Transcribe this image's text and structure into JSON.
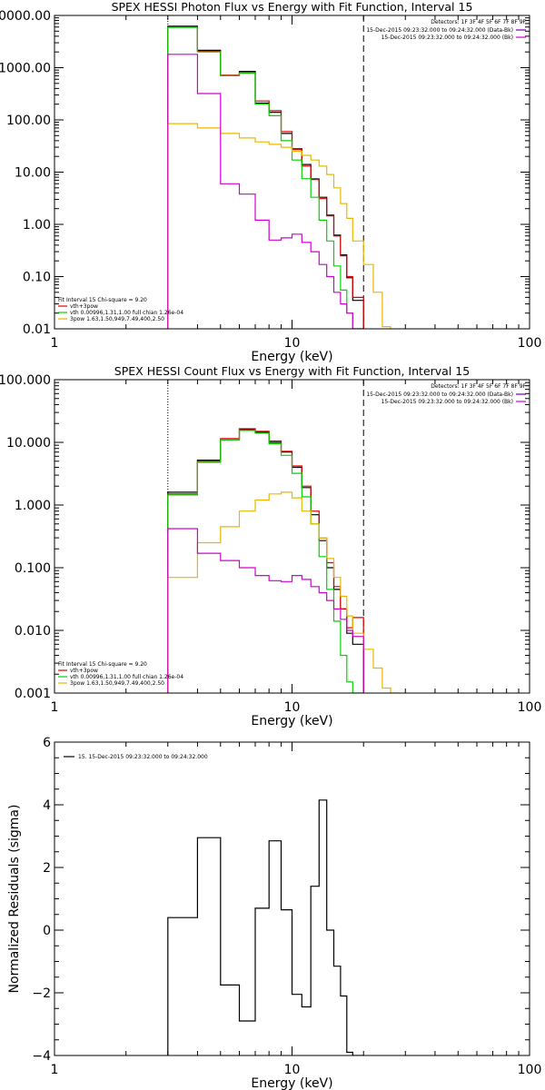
{
  "colors": {
    "black": "#000000",
    "red": "#e00000",
    "green": "#00d400",
    "magenta": "#d000d0",
    "yellow": "#e8b800",
    "purple": "#6a00b0"
  },
  "chart_data": [
    {
      "type": "line",
      "style": "histogram (step) on log-log axes",
      "title": "SPEX HESSI Photon Flux vs Energy with Fit Function, Interval 15",
      "xlabel": "Energy (keV)",
      "ylabel": "",
      "xscale": "log",
      "yscale": "log",
      "xlim": [
        1,
        100
      ],
      "ylim": [
        0.01,
        10000
      ],
      "xtick_labels": [
        "1",
        "10",
        "100"
      ],
      "ytick_values": [
        0.01,
        0.1,
        1,
        10,
        100,
        1000,
        10000
      ],
      "ytick_labels": [
        "0.01",
        "0.10",
        "1.00",
        "10.00",
        "100.00",
        "1000.00",
        "10000.00"
      ],
      "detectors_text": "Detectors: 1F 3F 4F 5F 6F 7F 8F 9F",
      "time_legend": [
        {
          "text": "15-Dec-2015 09:23:32.000 to 09:24:32.000 (Data-Bk)",
          "color": "#6a00b0"
        },
        {
          "text": "15-Dec-2015 09:23:32.000 to 09:24:32.000 (Bk)",
          "color": "#d000d0"
        }
      ],
      "fit_legend": {
        "header": "Fit Interval 15   Chi-square = 9.20",
        "items": [
          {
            "text": "vth+3pow",
            "color": "#e00000"
          },
          {
            "text": "vth 0.00996,1.31,1.00  full chian 1.26e-04",
            "color": "#00d400"
          },
          {
            "text": "3pow 1.63,1.50,949,7.49,400,2.50",
            "color": "#e8b800"
          }
        ]
      },
      "vlines": [
        {
          "x": 3,
          "style": "dotted"
        },
        {
          "x": 20,
          "style": "dashed"
        }
      ],
      "edges": [
        3,
        4,
        5,
        6,
        7,
        8,
        9,
        10,
        11,
        12,
        13,
        14,
        15,
        16,
        17,
        18,
        20,
        22,
        24,
        26
      ],
      "series": [
        {
          "name": "Data-Bk",
          "color": "#000000",
          "values": [
            6200,
            2150,
            710,
            850,
            210,
            140,
            55,
            28,
            14,
            7.4,
            3.3,
            1.5,
            0.62,
            0.26,
            0.095,
            0.035,
            null,
            null,
            null
          ]
        },
        {
          "name": "vth+3pow",
          "color": "#e00000",
          "values": [
            6000,
            2050,
            720,
            800,
            230,
            150,
            60,
            27,
            13,
            7.2,
            3.1,
            1.45,
            0.6,
            0.25,
            0.1,
            0.04,
            null,
            null,
            null
          ]
        },
        {
          "name": "vth",
          "color": "#00d400",
          "values": [
            5900,
            2000,
            700,
            780,
            200,
            120,
            40,
            17,
            7.5,
            3.3,
            1.2,
            0.48,
            0.16,
            0.055,
            0.02,
            0.01,
            null,
            null,
            null
          ]
        },
        {
          "name": "3pow",
          "color": "#e8b800",
          "values": [
            85,
            70,
            55,
            45,
            38,
            34,
            30,
            25,
            21,
            17,
            13,
            9,
            5,
            2.5,
            1.3,
            0.48,
            0.17,
            0.05,
            0.011
          ]
        },
        {
          "name": "Bk",
          "color": "#d000d0",
          "values": [
            1800,
            320,
            6,
            3.8,
            1.2,
            0.5,
            0.55,
            0.65,
            0.45,
            0.3,
            0.17,
            0.1,
            0.05,
            0.03,
            0.02,
            0.01,
            null,
            null,
            null
          ]
        }
      ]
    },
    {
      "type": "line",
      "style": "histogram (step) on log-log axes",
      "title": "SPEX HESSI Count Flux vs Energy with Fit Function, Interval 15",
      "xlabel": "Energy (keV)",
      "ylabel": "",
      "xscale": "log",
      "yscale": "log",
      "xlim": [
        1,
        100
      ],
      "ylim": [
        0.001,
        100
      ],
      "xtick_labels": [
        "1",
        "10",
        "100"
      ],
      "ytick_values": [
        0.001,
        0.01,
        0.1,
        1,
        10,
        100
      ],
      "ytick_labels": [
        "0.001",
        "0.010",
        "0.100",
        "1.000",
        "10.000",
        "100.000"
      ],
      "detectors_text": "Detectors: 1F 3F 4F 5F 6F 7F 8F 9F",
      "time_legend": [
        {
          "text": "15-Dec-2015 09:23:32.000 to 09:24:32.000 (Data-Bk)",
          "color": "#6a00b0"
        },
        {
          "text": "15-Dec-2015 09:23:32.000 to 09:24:32.000 (Bk)",
          "color": "#d000d0"
        }
      ],
      "fit_legend": {
        "header": "Fit Interval 15   Chi-square = 9.20",
        "items": [
          {
            "text": "vth+3pow",
            "color": "#e00000"
          },
          {
            "text": "vth 0.00996,1.31,1.00  full chian 1.26e-04",
            "color": "#00d400"
          },
          {
            "text": "3pow 1.63,1.50,949,7.49,400,2.50",
            "color": "#e8b800"
          }
        ]
      },
      "vlines": [
        {
          "x": 3,
          "style": "dotted"
        },
        {
          "x": 20,
          "style": "dashed"
        }
      ],
      "edges": [
        3,
        4,
        5,
        6,
        7,
        8,
        9,
        10,
        11,
        12,
        13,
        14,
        15,
        16,
        17,
        18,
        20,
        22,
        24,
        26,
        28
      ],
      "series": [
        {
          "name": "Data-Bk",
          "color": "#000000",
          "values": [
            1.6,
            5.2,
            11,
            16,
            14.5,
            10,
            7,
            4,
            1.9,
            0.7,
            0.27,
            0.1,
            0.045,
            0.022,
            0.009,
            0.006,
            null,
            null,
            null,
            null
          ]
        },
        {
          "name": "vth+3pow",
          "color": "#e00000",
          "values": [
            1.5,
            5.0,
            11.5,
            16.5,
            15,
            10.5,
            7.2,
            4.2,
            2.0,
            0.8,
            0.3,
            0.12,
            0.05,
            0.022,
            0.011,
            0.016,
            null,
            null,
            null,
            null
          ]
        },
        {
          "name": "vth",
          "color": "#00d400",
          "values": [
            1.45,
            4.8,
            11,
            15.5,
            14,
            9.5,
            6.2,
            3.2,
            1.35,
            0.5,
            0.15,
            0.045,
            0.014,
            0.004,
            0.0015,
            0.001,
            null,
            null,
            null,
            null
          ]
        },
        {
          "name": "3pow",
          "color": "#e8b800",
          "values": [
            0.07,
            0.25,
            0.45,
            0.8,
            1.2,
            1.5,
            1.6,
            1.3,
            0.8,
            0.5,
            0.3,
            0.14,
            0.07,
            0.035,
            0.017,
            0.009,
            0.005,
            0.0025,
            0.0012,
            0.001
          ]
        },
        {
          "name": "Bk",
          "color": "#d000d0",
          "values": [
            0.42,
            0.17,
            0.13,
            0.1,
            0.075,
            0.062,
            0.06,
            0.075,
            0.065,
            0.05,
            0.04,
            0.03,
            0.022,
            0.015,
            0.01,
            0.008,
            null,
            null,
            null,
            null
          ]
        }
      ]
    },
    {
      "type": "line",
      "style": "histogram (step), log x axis",
      "title": "",
      "xlabel": "Energy (keV)",
      "ylabel": "Normalized Residuals (sigma)",
      "xscale": "log",
      "yscale": "linear",
      "xlim": [
        1,
        100
      ],
      "ylim": [
        -4,
        6
      ],
      "xtick_labels": [
        "1",
        "10",
        "100"
      ],
      "ytick_values": [
        -4,
        -2,
        0,
        2,
        4,
        6
      ],
      "ytick_labels": [
        "−4",
        "−2",
        "0",
        "2",
        "4",
        "6"
      ],
      "legend": "15. 15-Dec-2015 09:23:32.000 to 09:24:32.000",
      "edges": [
        3,
        4,
        5,
        6,
        7,
        8,
        9,
        10,
        11,
        12,
        13,
        14,
        15,
        16,
        17,
        18,
        20
      ],
      "series": [
        {
          "name": "15. 15-Dec-2015 09:23:32.000 to 09:24:32.000",
          "color": "#000000",
          "values": [
            0.4,
            2.95,
            -1.75,
            -2.9,
            0.7,
            2.85,
            0.65,
            -2.05,
            -2.45,
            1.4,
            4.15,
            0,
            -1.15,
            -2.1,
            -3.9,
            -4
          ]
        }
      ]
    }
  ]
}
